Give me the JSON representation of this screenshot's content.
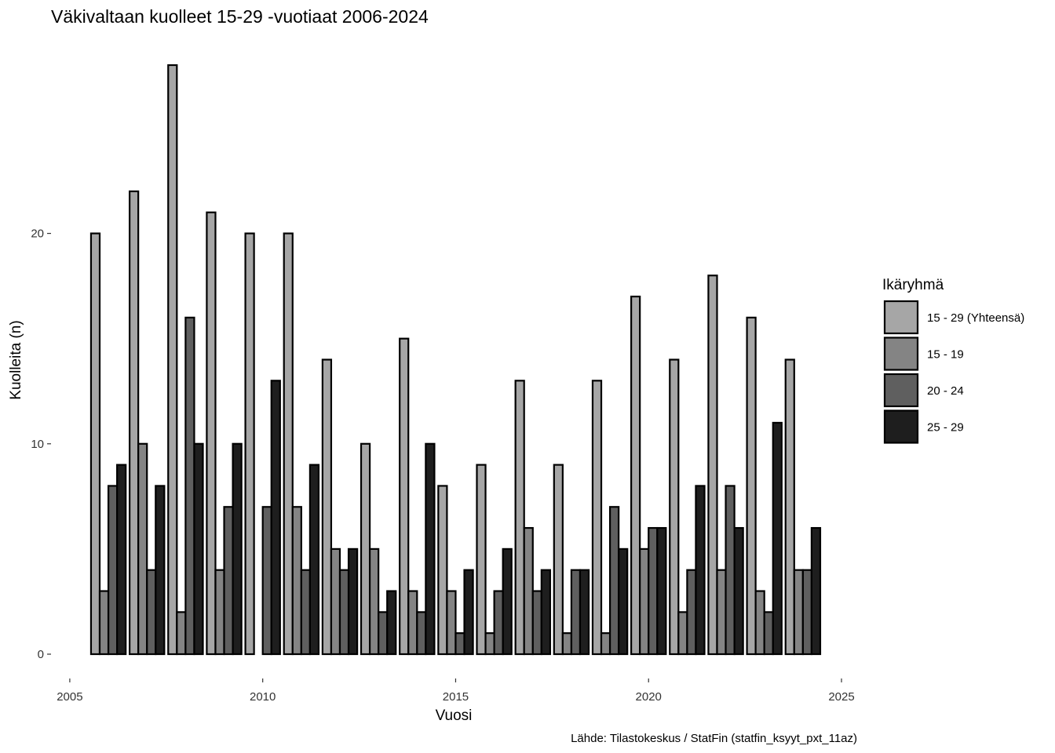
{
  "chart_data": {
    "type": "bar",
    "title": "Väkivaltaan kuolleet 15-29 -vuotiaat 2006-2024",
    "xlabel": "Vuosi",
    "ylabel": "Kuolleita (n)",
    "caption": "Lähde: Tilastokeskus / StatFin (statfin_ksyyt_pxt_11az)",
    "x": [
      2006,
      2007,
      2008,
      2009,
      2010,
      2011,
      2012,
      2013,
      2014,
      2015,
      2016,
      2017,
      2018,
      2019,
      2020,
      2021,
      2022,
      2023,
      2024
    ],
    "xlim": [
      2004.9,
      2025
    ],
    "ylim": [
      0,
      28
    ],
    "x_ticks": [
      2005,
      2010,
      2015,
      2020,
      2025
    ],
    "y_ticks": [
      0,
      10,
      20
    ],
    "grid": false,
    "legend_title": "Ikäryhmä",
    "legend_position": "right",
    "series": [
      {
        "name": "15 - 29 (Yhteensä)",
        "color": "#a6a6a6",
        "values": [
          20,
          22,
          28,
          21,
          20,
          20,
          14,
          10,
          15,
          8,
          9,
          13,
          9,
          13,
          17,
          14,
          18,
          16,
          14
        ]
      },
      {
        "name": "15 - 19",
        "color": "#848484",
        "values": [
          3,
          10,
          2,
          4,
          0,
          7,
          5,
          5,
          3,
          3,
          1,
          6,
          1,
          1,
          5,
          2,
          4,
          3,
          4
        ]
      },
      {
        "name": "20 - 24",
        "color": "#5f5f5f",
        "values": [
          8,
          4,
          16,
          7,
          7,
          4,
          4,
          2,
          2,
          1,
          3,
          3,
          4,
          7,
          6,
          4,
          8,
          2,
          4
        ]
      },
      {
        "name": "25 - 29",
        "color": "#1e1e1e",
        "values": [
          9,
          8,
          10,
          10,
          13,
          9,
          5,
          3,
          10,
          4,
          5,
          4,
          4,
          5,
          6,
          8,
          6,
          11,
          6
        ]
      }
    ]
  }
}
